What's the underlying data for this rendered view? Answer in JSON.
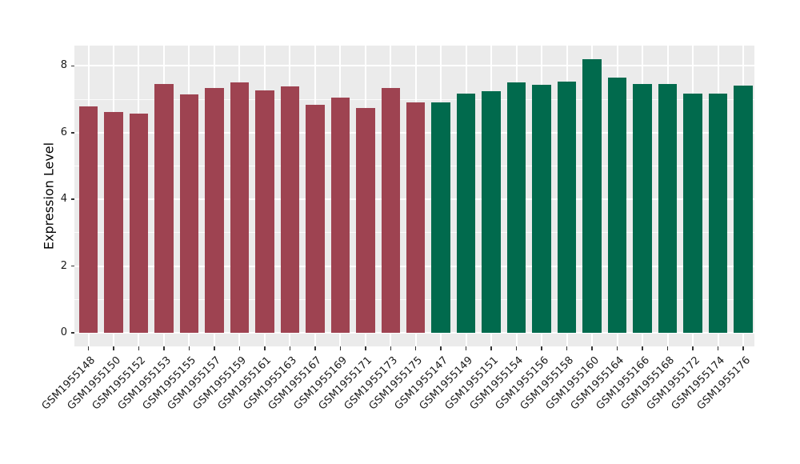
{
  "chart_data": {
    "type": "bar",
    "title": "",
    "ylabel": "Expression Level",
    "xlabel": "",
    "categories": [
      "GSM1955148",
      "GSM1955150",
      "GSM1955152",
      "GSM1955153",
      "GSM1955155",
      "GSM1955157",
      "GSM1955159",
      "GSM1955161",
      "GSM1955163",
      "GSM1955167",
      "GSM1955169",
      "GSM1955171",
      "GSM1955173",
      "GSM1955175",
      "GSM1955147",
      "GSM1955149",
      "GSM1955151",
      "GSM1955154",
      "GSM1955156",
      "GSM1955158",
      "GSM1955160",
      "GSM1955164",
      "GSM1955166",
      "GSM1955168",
      "GSM1955172",
      "GSM1955174",
      "GSM1955176"
    ],
    "values": [
      6.79,
      6.63,
      6.57,
      7.46,
      7.14,
      7.34,
      7.5,
      7.26,
      7.38,
      6.83,
      7.04,
      6.74,
      7.34,
      6.9,
      6.9,
      7.18,
      7.24,
      7.51,
      7.43,
      7.53,
      8.2,
      7.65,
      7.46,
      7.47,
      7.18,
      7.18,
      7.4
    ],
    "bar_groups": [
      "maroon",
      "maroon",
      "maroon",
      "maroon",
      "maroon",
      "maroon",
      "maroon",
      "maroon",
      "maroon",
      "maroon",
      "maroon",
      "maroon",
      "maroon",
      "maroon",
      "green",
      "green",
      "green",
      "green",
      "green",
      "green",
      "green",
      "green",
      "green",
      "green",
      "green",
      "green",
      "green"
    ],
    "group_colors": {
      "maroon": "#9E4351",
      "green": "#016A4D"
    },
    "yticks": [
      "0",
      "2",
      "4",
      "6",
      "8"
    ],
    "ytick_values": [
      0,
      2,
      4,
      6,
      8
    ],
    "yminor_values": [
      1,
      3,
      5,
      7
    ],
    "ylim": [
      -0.43,
      8.59
    ],
    "grid": {
      "panel_bg": "#EBEBEB",
      "major_color": "#FFFFFF",
      "minor_color": "#FFFFFF",
      "horizontal": true,
      "vertical_at_bar_centers": true
    },
    "legend_position": "none",
    "tick_color": "#333333",
    "text_color": "#1a1a1a"
  }
}
